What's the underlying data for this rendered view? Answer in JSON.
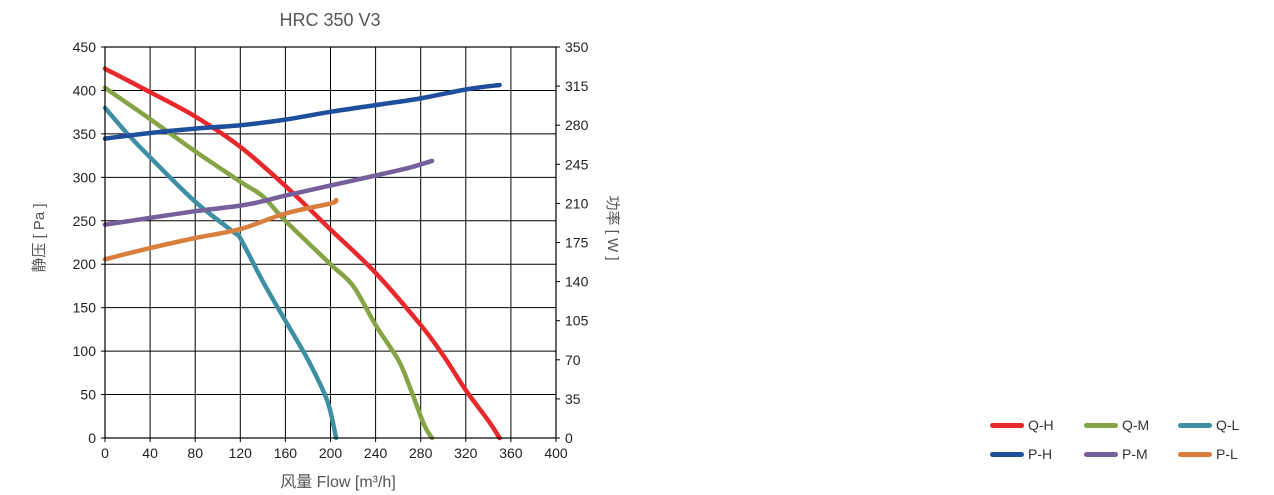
{
  "chart_data": {
    "type": "line",
    "title": "HRC 350 V3",
    "xlabel": "风量 Flow  [m³/h]",
    "ylabel": "静压 [ Pa ]",
    "y2label": "功率 [ W ]",
    "xlim": [
      0,
      400
    ],
    "ylim": [
      0,
      450
    ],
    "y2lim": [
      0,
      350
    ],
    "xticks": [
      "0",
      "40",
      "80",
      "120",
      "160",
      "200",
      "240",
      "280",
      "320",
      "360",
      "400"
    ],
    "yticks": [
      "0",
      "50",
      "100",
      "150",
      "200",
      "250",
      "300",
      "350",
      "400",
      "450"
    ],
    "y2ticks": [
      "0",
      "35",
      "70",
      "105",
      "140",
      "175",
      "210",
      "245",
      "280",
      "315",
      "350"
    ],
    "grid": true,
    "legend_position": "bottom-right",
    "series": [
      {
        "name": "Q-H",
        "axis": "left",
        "color": "#e8282b",
        "x": [
          0,
          40,
          80,
          120,
          160,
          200,
          240,
          280,
          300,
          320,
          340,
          350
        ],
        "y": [
          425,
          398,
          370,
          335,
          290,
          240,
          190,
          130,
          95,
          55,
          20,
          0
        ]
      },
      {
        "name": "Q-M",
        "axis": "left",
        "color": "#86a346",
        "x": [
          0,
          40,
          80,
          120,
          140,
          160,
          200,
          220,
          240,
          260,
          270,
          280,
          285,
          290
        ],
        "y": [
          403,
          367,
          330,
          295,
          278,
          250,
          200,
          175,
          130,
          90,
          60,
          25,
          10,
          0
        ]
      },
      {
        "name": "Q-L",
        "axis": "left",
        "color": "#3e8fa3",
        "x": [
          0,
          20,
          40,
          80,
          115,
          120,
          140,
          160,
          180,
          195,
          200,
          205
        ],
        "y": [
          380,
          350,
          323,
          272,
          236,
          230,
          180,
          135,
          90,
          50,
          30,
          0
        ]
      },
      {
        "name": "P-H",
        "axis": "right",
        "color": "#1f4e9c",
        "x": [
          0,
          40,
          80,
          120,
          160,
          200,
          240,
          280,
          320,
          350
        ],
        "y": [
          268,
          273,
          277,
          280,
          285,
          292,
          298,
          304,
          312,
          316
        ]
      },
      {
        "name": "P-M",
        "axis": "right",
        "color": "#76609b",
        "x": [
          0,
          40,
          80,
          120,
          140,
          160,
          200,
          240,
          270,
          290
        ],
        "y": [
          191,
          197,
          203,
          208,
          212,
          217,
          226,
          235,
          242,
          248
        ]
      },
      {
        "name": "P-L",
        "axis": "right",
        "color": "#d87f3e",
        "x": [
          0,
          40,
          80,
          120,
          160,
          200,
          205
        ],
        "y": [
          160,
          170,
          179,
          187,
          201,
          210,
          213
        ]
      }
    ]
  }
}
